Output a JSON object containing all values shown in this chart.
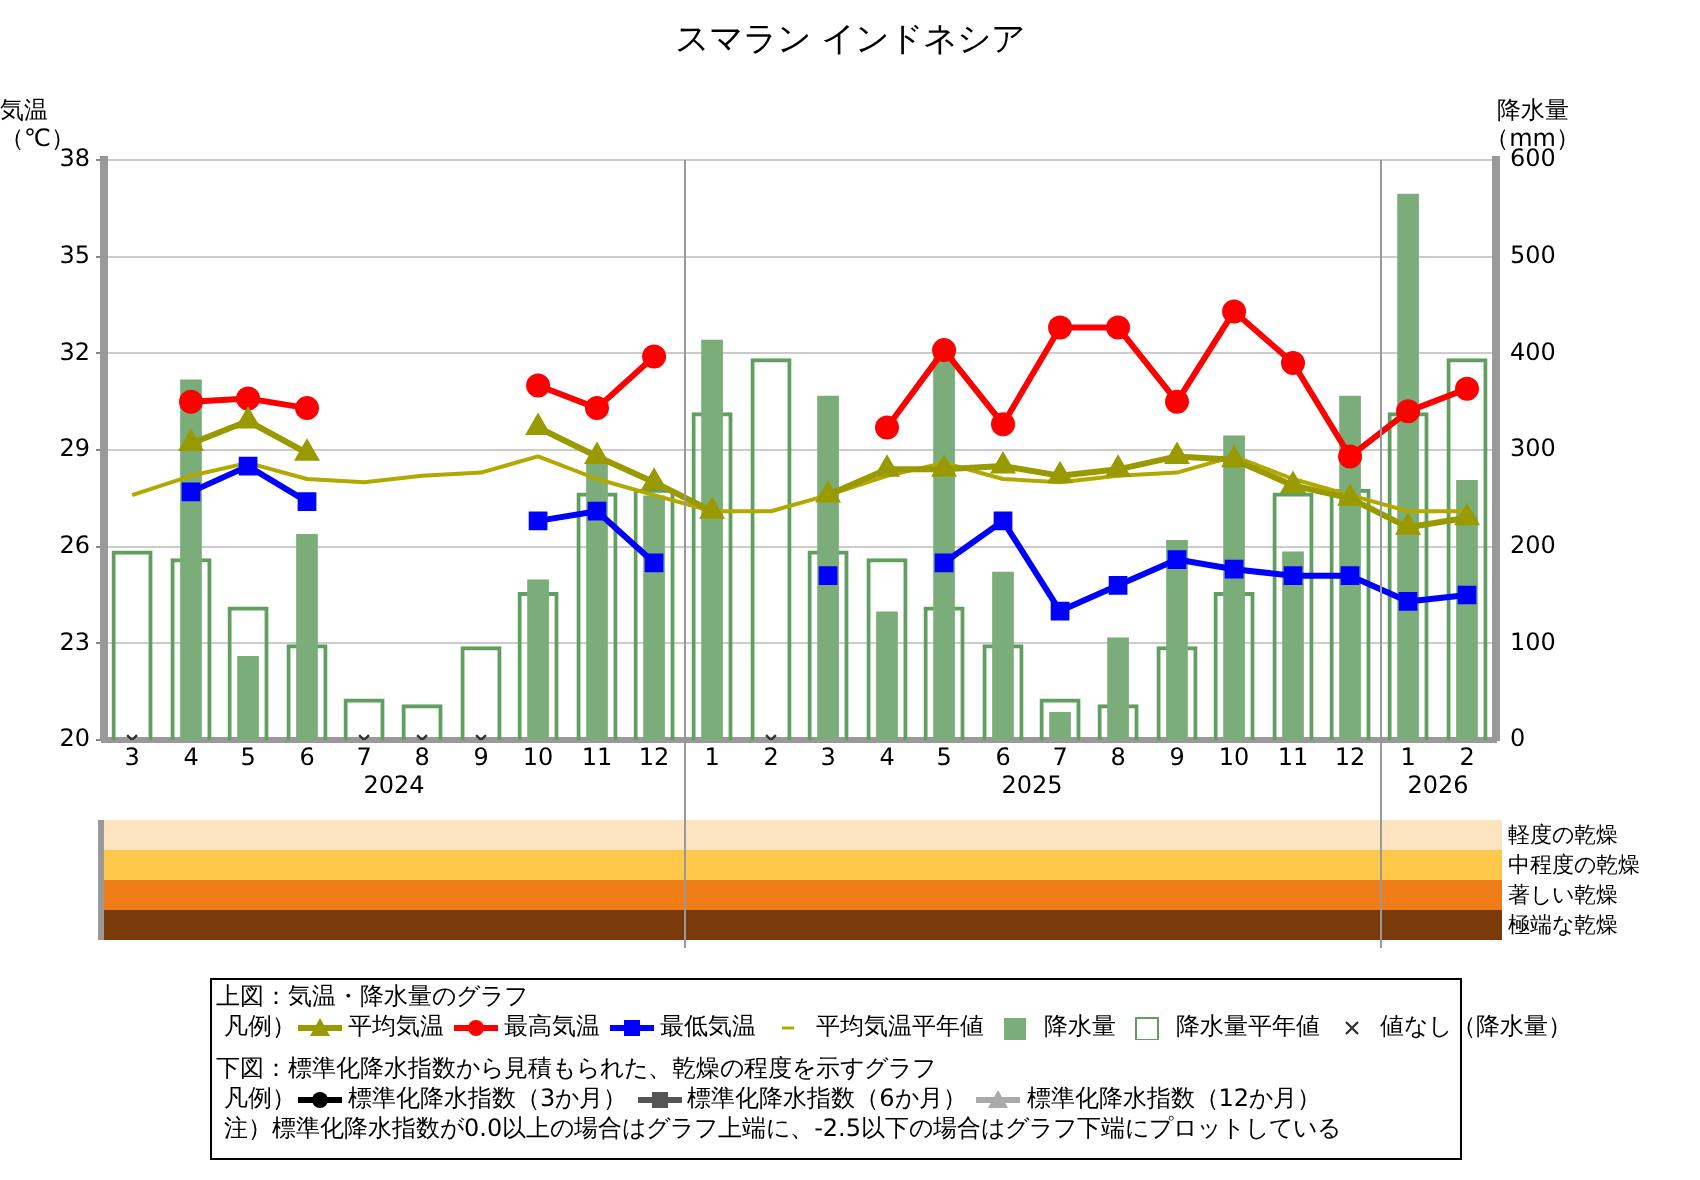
{
  "chart_data": [
    {
      "type": "bar",
      "title": "スマラン インドネシア",
      "ylabel": "気温（℃）",
      "y2label": "降水量（mm）",
      "x": [
        "2024-03-16",
        "2024-04-16",
        "2024-05-16",
        "2024-06-16",
        "2024-07-16",
        "2024-08-16",
        "2024-09-16",
        "2024-10-16",
        "2024-11-16",
        "2024-12-16",
        "2025-01-16",
        "2025-02-15",
        "2025-03-16",
        "2025-04-16",
        "2025-05-16",
        "2025-06-16",
        "2025-07-16",
        "2025-08-16",
        "2025-09-16",
        "2025-10-16",
        "2025-11-16",
        "2025-12-16",
        "2026-01-16",
        "2026-02-15"
      ],
      "xlim": [
        "2024-03-01",
        "2026-03-01"
      ],
      "xticks": [
        {
          "value": "2024-03-16",
          "label": "3"
        },
        {
          "value": "2024-04-16",
          "label": "4"
        },
        {
          "value": "2024-05-16",
          "label": "5"
        },
        {
          "value": "2024-06-16",
          "label": "6"
        },
        {
          "value": "2024-07-16",
          "label": "7"
        },
        {
          "value": "2024-08-16",
          "label": "8"
        },
        {
          "value": "2024-09-16",
          "label": "9"
        },
        {
          "value": "2024-10-16",
          "label": "10"
        },
        {
          "value": "2024-11-16",
          "label": "11"
        },
        {
          "value": "2024-12-16",
          "label": "12"
        },
        {
          "value": "2025-01-16",
          "label": "1"
        },
        {
          "value": "2025-02-15",
          "label": "2"
        },
        {
          "value": "2025-03-16",
          "label": "3"
        },
        {
          "value": "2025-04-16",
          "label": "4"
        },
        {
          "value": "2025-05-16",
          "label": "5"
        },
        {
          "value": "2025-06-16",
          "label": "6"
        },
        {
          "value": "2025-07-16",
          "label": "7"
        },
        {
          "value": "2025-08-16",
          "label": "8"
        },
        {
          "value": "2025-09-16",
          "label": "9"
        },
        {
          "value": "2025-10-16",
          "label": "10"
        },
        {
          "value": "2025-11-16",
          "label": "11"
        },
        {
          "value": "2025-12-16",
          "label": "12"
        },
        {
          "value": "2026-01-16",
          "label": "1"
        },
        {
          "value": "2026-02-15",
          "label": "2"
        }
      ],
      "x2lim": [
        "2024-03-01",
        "2026-03-01"
      ],
      "x2ticks": [
        {
          "value": "2024-08-01",
          "label": "2024"
        },
        {
          "value": "2025-07-01",
          "label": "2025"
        },
        {
          "value": "2026-02-01",
          "label": "2026"
        }
      ],
      "ylim": [
        20,
        38
      ],
      "yticks": [
        20,
        23,
        26,
        29,
        32,
        35,
        38
      ],
      "y2lim": [
        0,
        600
      ],
      "y2ticks": [
        0,
        100,
        200,
        300,
        400,
        500,
        600
      ],
      "grid": "y",
      "legend": "bottom",
      "ref_lines": [
        {
          "axis": "x",
          "value": "2025-01-01",
          "label": null,
          "color": "#999999"
        },
        {
          "axis": "x",
          "value": "2026-01-01",
          "label": null,
          "color": "#999999"
        }
      ],
      "annotations": [
        "上図：気温・降水量のグラフ",
        "凡例）"
      ],
      "series": [
        {
          "type": "line",
          "name": "平均気温",
          "color": "#999900",
          "marker": "triangle",
          "values": [
            null,
            29.2,
            29.9,
            28.9,
            null,
            null,
            null,
            29.7,
            28.8,
            28.0,
            27.1,
            null,
            27.6,
            28.4,
            28.4,
            28.5,
            28.2,
            28.4,
            28.8,
            28.7,
            27.9,
            27.5,
            26.6,
            26.9
          ]
        },
        {
          "type": "line",
          "name": "最高気温",
          "color": "#ff0000",
          "marker": "circle",
          "values": [
            null,
            30.5,
            30.6,
            30.3,
            null,
            null,
            null,
            31.0,
            30.3,
            31.9,
            null,
            null,
            null,
            29.7,
            32.1,
            29.8,
            32.8,
            32.8,
            30.5,
            33.3,
            31.7,
            28.8,
            30.2,
            30.9
          ]
        },
        {
          "type": "line",
          "name": "最低気温",
          "color": "#0000ff",
          "marker": "square",
          "values": [
            null,
            27.7,
            28.5,
            27.4,
            null,
            null,
            null,
            26.8,
            27.1,
            25.5,
            null,
            null,
            25.1,
            null,
            25.5,
            26.8,
            24.0,
            24.8,
            25.6,
            25.3,
            25.1,
            25.1,
            24.3,
            24.5
          ]
        },
        {
          "type": "line",
          "name": "平均気温平年値",
          "color": "#b3a800",
          "marker": "none",
          "values": [
            27.6,
            28.2,
            28.6,
            28.1,
            28.0,
            28.2,
            28.3,
            28.8,
            28.1,
            27.6,
            27.1,
            27.1,
            27.6,
            28.2,
            28.6,
            28.1,
            28.0,
            28.2,
            28.3,
            28.8,
            28.1,
            27.6,
            27.1,
            27.1
          ]
        },
        {
          "type": "bar",
          "axis": "y2",
          "name": "降水量",
          "color": "#7aad7a",
          "values": [
            null,
            373,
            87,
            213,
            null,
            null,
            null,
            166,
            289,
            253,
            414,
            null,
            356,
            133,
            398,
            174,
            29,
            106,
            207,
            315,
            195,
            356,
            565,
            269
          ]
        },
        {
          "type": "bar",
          "axis": "y2",
          "name": "降水量平年値",
          "color": "#5f9f5f",
          "values": [
            196,
            188,
            138,
            99,
            43,
            37,
            97,
            153,
            256,
            260,
            339,
            395,
            196,
            188,
            138,
            99,
            43,
            37,
            97,
            153,
            256,
            260,
            339,
            395
          ]
        },
        {
          "type": "scatter",
          "axis": "y2",
          "name": "値なし（降水量）",
          "color": "#333333",
          "marker": "cross",
          "values": [
            0,
            null,
            null,
            null,
            0,
            0,
            0,
            null,
            null,
            null,
            null,
            0,
            null,
            null,
            null,
            null,
            null,
            null,
            null,
            null,
            null,
            null,
            null,
            null
          ]
        }
      ]
    },
    {
      "type": "other",
      "legend": "bottom",
      "categories": [
        "軽度の乾燥",
        "中程度の乾燥",
        "著しい乾燥",
        "極端な乾燥"
      ],
      "colors": [
        "#fde4c0",
        "#ffc84a",
        "#f07c18",
        "#7b3a0a"
      ],
      "annotations": [
        "下図：標準化降水指数から見積もられた、乾燥の程度を示すグラフ",
        "凡例）",
        "注）標準化降水指数が0.0以上の場合はグラフ上端に、-2.5以下の場合はグラフ下端にプロットしている"
      ],
      "series": [
        {
          "name": "標準化降水指数（3か月）",
          "color": "#000000",
          "marker": "circle",
          "values": [
            null,
            null,
            null,
            null
          ]
        },
        {
          "name": "標準化降水指数（6か月）",
          "color": "#555555",
          "marker": "square",
          "values": [
            null,
            null,
            null,
            null
          ]
        },
        {
          "name": "標準化降水指数（12か月）",
          "color": "#aaaaaa",
          "marker": "triangle",
          "values": [
            null,
            null,
            null,
            null
          ]
        }
      ]
    }
  ]
}
